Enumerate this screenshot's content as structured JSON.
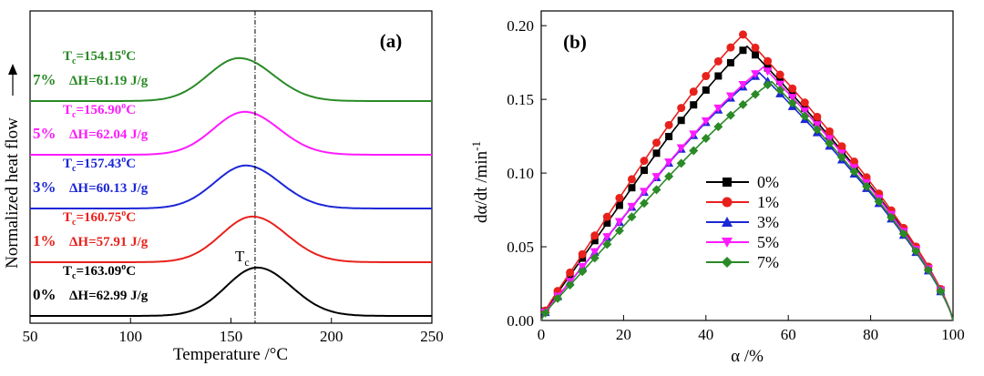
{
  "chart_data": [
    {
      "type": "line",
      "panel_label": "(a)",
      "xlabel": "Temperature /°C",
      "ylabel": "Normalized heat flow",
      "xlim": [
        50,
        250
      ],
      "xticks": [
        "50",
        "100",
        "150",
        "200",
        "250"
      ],
      "marker_label": "T",
      "marker_label_sub": "c",
      "marker_x": 162,
      "series": [
        {
          "name": "0%",
          "color": "#000000",
          "peak_x": 163.09,
          "tc_value": "=163.09",
          "deg": "o",
          "unit": "C",
          "dh_label": "ΔH=62.99 J/g",
          "offset": 0.0,
          "amp": 0.9
        },
        {
          "name": "1%",
          "color": "#e8211c",
          "peak_x": 160.75,
          "tc_value": "=160.75",
          "deg": "o",
          "unit": "C",
          "dh_label": "ΔH=57.91 J/g",
          "offset": 1.0,
          "amp": 0.85
        },
        {
          "name": "3%",
          "color": "#1c27d6",
          "peak_x": 157.43,
          "tc_value": "=157.43",
          "deg": "o",
          "unit": "C",
          "dh_label": "ΔH=60.13 J/g",
          "offset": 2.0,
          "amp": 0.8
        },
        {
          "name": "5%",
          "color": "#ff1aff",
          "peak_x": 156.9,
          "tc_value": "=156.90",
          "deg": "o",
          "unit": "C",
          "dh_label": "ΔH=62.04 J/g",
          "offset": 3.0,
          "amp": 0.8
        },
        {
          "name": "7%",
          "color": "#2a8a26",
          "peak_x": 154.15,
          "tc_value": "=154.15",
          "deg": "o",
          "unit": "C",
          "dh_label": "ΔH=61.19 J/g",
          "offset": 4.0,
          "amp": 0.8
        }
      ]
    },
    {
      "type": "line",
      "panel_label": "(b)",
      "xlabel": "α /%",
      "ylabel": "dα/dt /min",
      "ylabel_sup": "-1",
      "xlim": [
        0,
        100
      ],
      "ylim": [
        0,
        0.21
      ],
      "xticks": [
        "0",
        "20",
        "40",
        "60",
        "80",
        "100"
      ],
      "yticks": [
        "0.00",
        "0.05",
        "0.10",
        "0.15",
        "0.20"
      ],
      "legend_position": "center",
      "series": [
        {
          "name": "0%",
          "color": "#000000",
          "marker": "square",
          "peak": 0.186,
          "peak_x": 50
        },
        {
          "name": "1%",
          "color": "#e8211c",
          "marker": "circle",
          "peak": 0.194,
          "peak_x": 49
        },
        {
          "name": "3%",
          "color": "#1c27d6",
          "marker": "triangle-up",
          "peak": 0.168,
          "peak_x": 53
        },
        {
          "name": "5%",
          "color": "#ff1aff",
          "marker": "triangle-down",
          "peak": 0.172,
          "peak_x": 54
        },
        {
          "name": "7%",
          "color": "#2a8a26",
          "marker": "diamond",
          "peak": 0.162,
          "peak_x": 56
        }
      ]
    }
  ]
}
